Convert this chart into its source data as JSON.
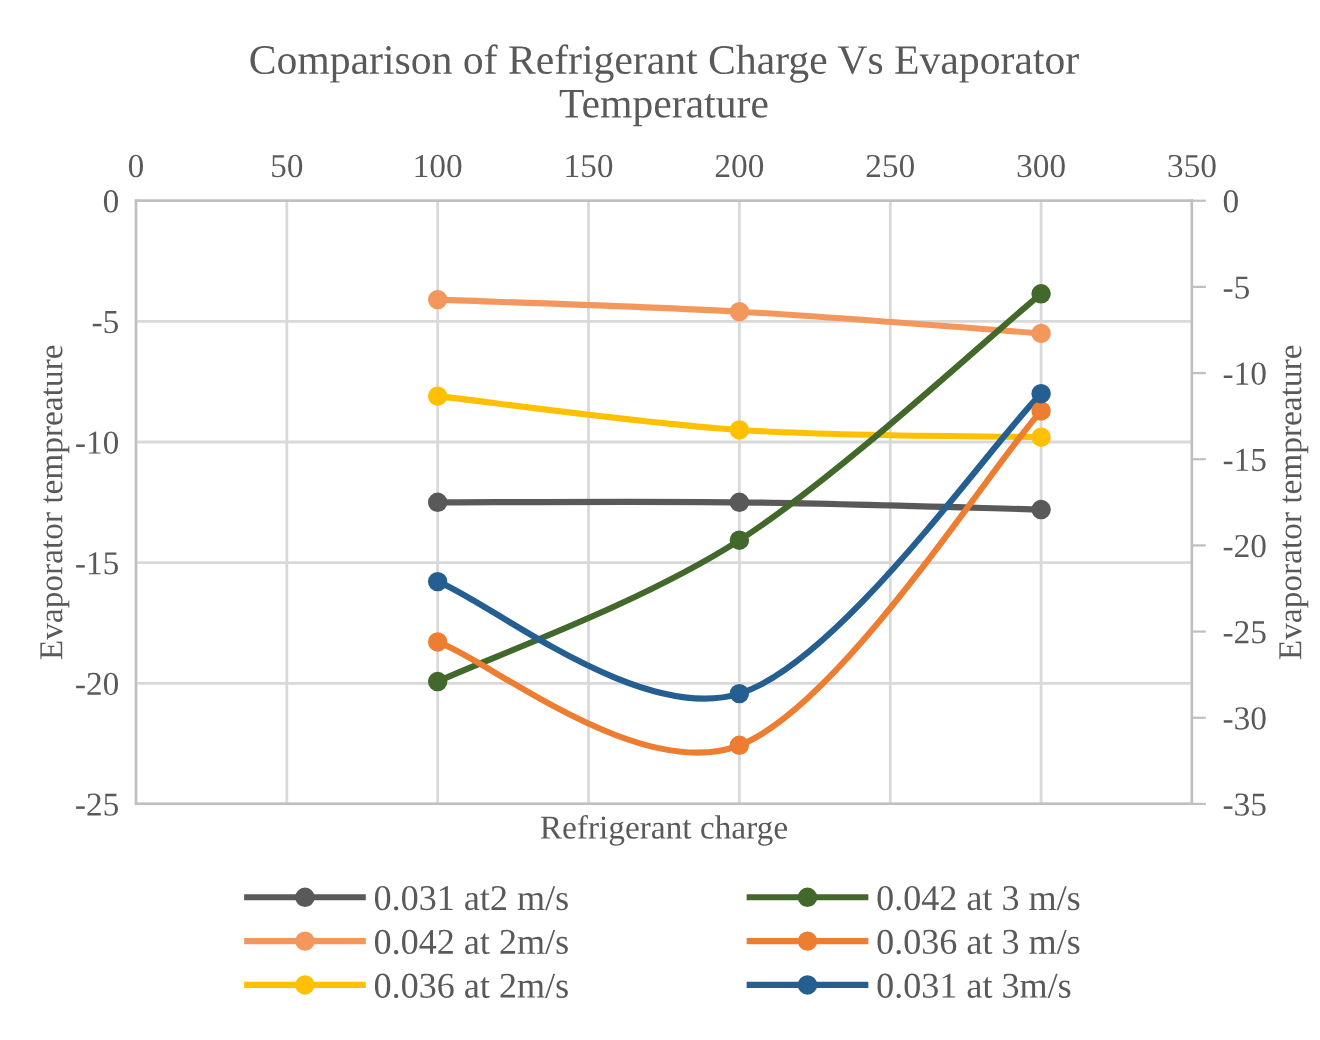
{
  "chart_data": {
    "type": "line",
    "title": "Comparison of Refrigerant Charge Vs Evaporator\nTemperature",
    "xlabel": "Refrigerant charge",
    "ylabel": "Evaporator tempreature",
    "y2label": "Evaporator tempreature",
    "x": [
      100,
      200,
      300
    ],
    "xlim": [
      0,
      350
    ],
    "xticks": [
      0,
      50,
      100,
      150,
      200,
      250,
      300,
      350
    ],
    "ylim": [
      -25,
      0
    ],
    "yticks": [
      -25,
      -20,
      -15,
      -10,
      -5,
      0
    ],
    "y2lim": [
      -35,
      0
    ],
    "y2ticks": [
      -35,
      -30,
      -25,
      -20,
      -15,
      -10,
      -5,
      0
    ],
    "grid": true,
    "legend": "bottom",
    "marker": "circle",
    "line_style": "solid",
    "series": [
      {
        "name": "0.031 at2 m/s",
        "color": "#595959",
        "values": [
          -12.5,
          -12.5,
          -12.8
        ]
      },
      {
        "name": "0.042 at 3 m/s",
        "color": "#43682b",
        "axis": "y2",
        "values": [
          -27.9,
          -19.7,
          -5.4
        ]
      },
      {
        "name": "0.042 at 2m/s",
        "color": "#f4975c",
        "values": [
          -4.1,
          -4.6,
          -5.5
        ]
      },
      {
        "name": "0.036 at 3 m/s",
        "color": "#ed7d31",
        "axis": "y2",
        "values": [
          -25.6,
          -31.6,
          -12.2
        ]
      },
      {
        "name": "0.036 at 2m/s",
        "color": "#ffc000",
        "values": [
          -8.1,
          -9.5,
          -9.8
        ]
      },
      {
        "name": "0.031 at 3m/s",
        "color": "#255e91",
        "axis": "y2",
        "values": [
          -22.1,
          -28.6,
          -11.2
        ]
      }
    ]
  }
}
